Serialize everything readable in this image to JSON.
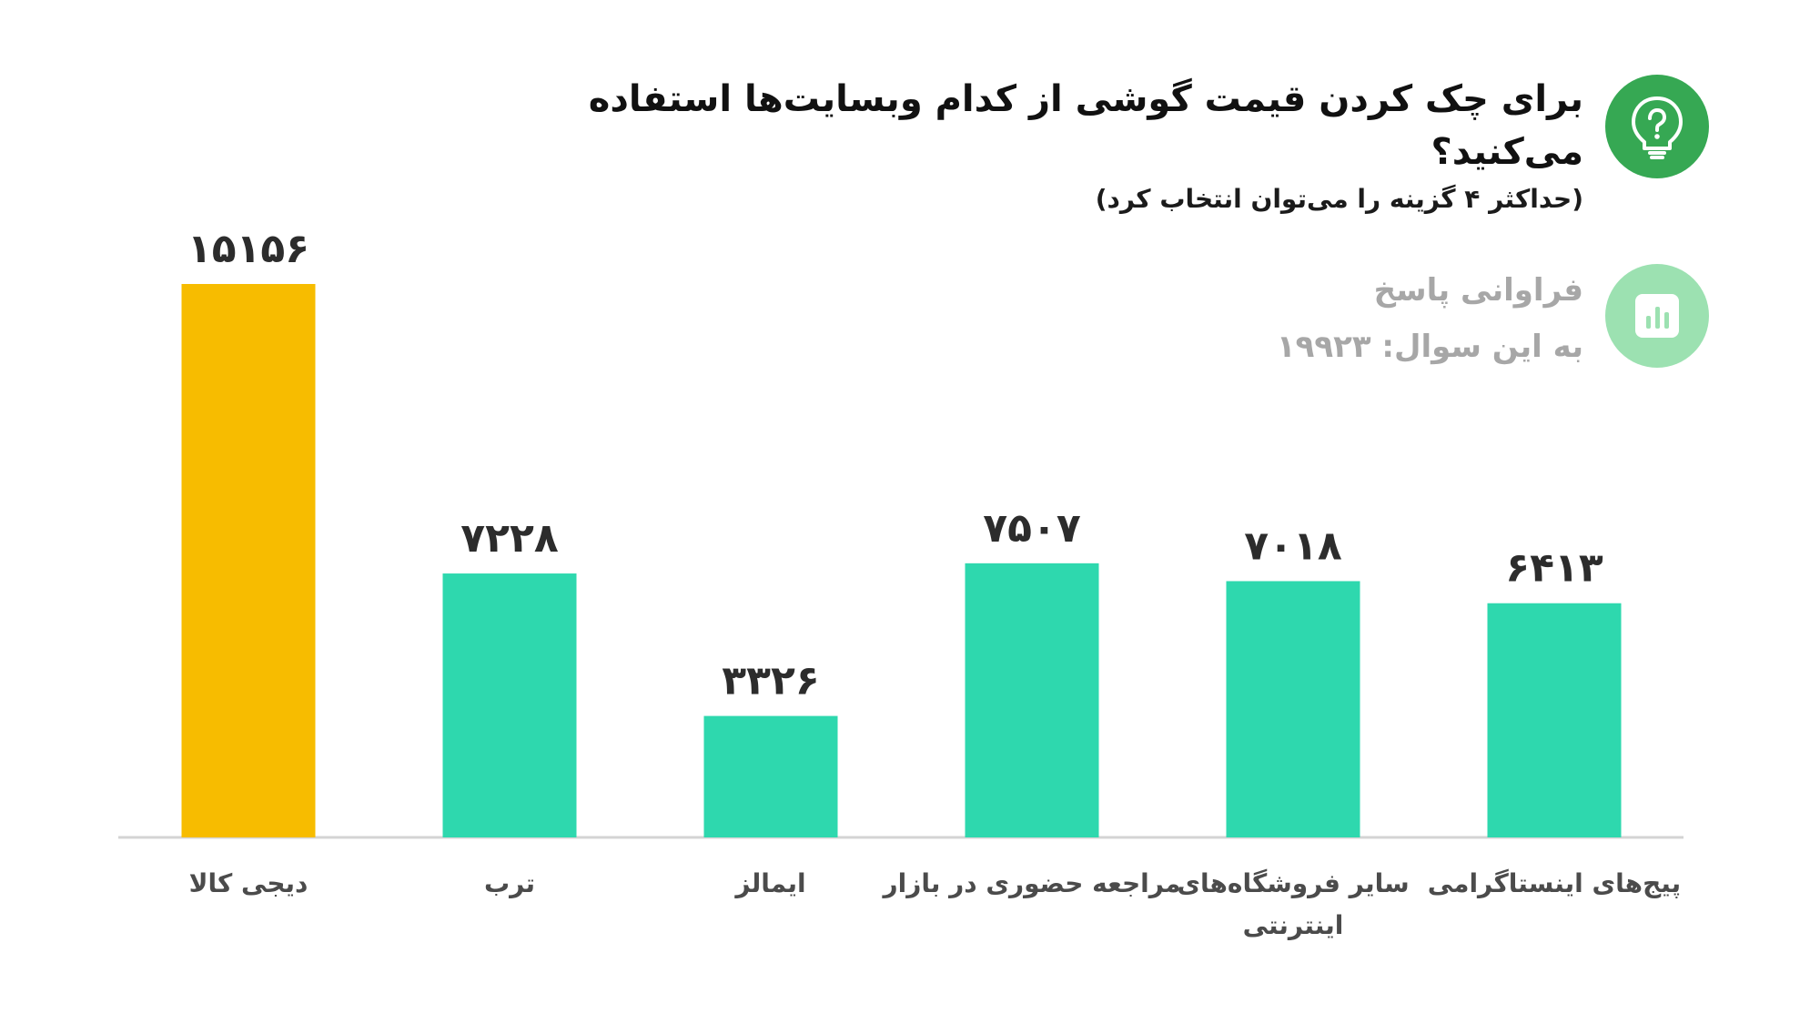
{
  "header": {
    "title": "برای چک کردن قیمت گوشی از کدام وبسایت‌ها استفاده می‌کنید؟",
    "subtitle": "(حداکثر ۴ گزینه را می‌توان انتخاب کرد)",
    "frequency_line_1": "فراوانی پاسخ",
    "frequency_line_2": "به این سوال:  ۱۹۹۲۳"
  },
  "icons": {
    "question": "question-bulb-icon",
    "stats": "bar-chart-icon"
  },
  "colors": {
    "highlight_bar": "#F7BC00",
    "default_bar": "#2ED8AE",
    "question_icon_bg": "#36A853",
    "stats_icon_bg": "#9CE1B1"
  },
  "chart_data": {
    "type": "bar",
    "categories": [
      "دیجی کالا",
      "ترب",
      "ایمالز",
      "مراجعه حضوری در بازار",
      "سایر فروشگاه‌های اینترنتی",
      "پیج‌های اینستاگرامی"
    ],
    "category_lines": [
      [
        "دیجی کالا"
      ],
      [
        "ترب"
      ],
      [
        "ایمالز"
      ],
      [
        "مراجعه حضوری در بازار"
      ],
      [
        "سایر فروشگاه‌های",
        "اینترنتی"
      ],
      [
        "پیج‌های اینستاگرامی"
      ]
    ],
    "values": [
      15156,
      7228,
      3326,
      7507,
      7018,
      6413
    ],
    "value_labels": [
      "۱۵۱۵۶",
      "۷۲۲۸",
      "۳۳۲۶",
      "۷۵۰۷",
      "۷۰۱۸",
      "۶۴۱۳"
    ],
    "highlight_index": 0,
    "ylim": [
      0,
      15156
    ]
  }
}
